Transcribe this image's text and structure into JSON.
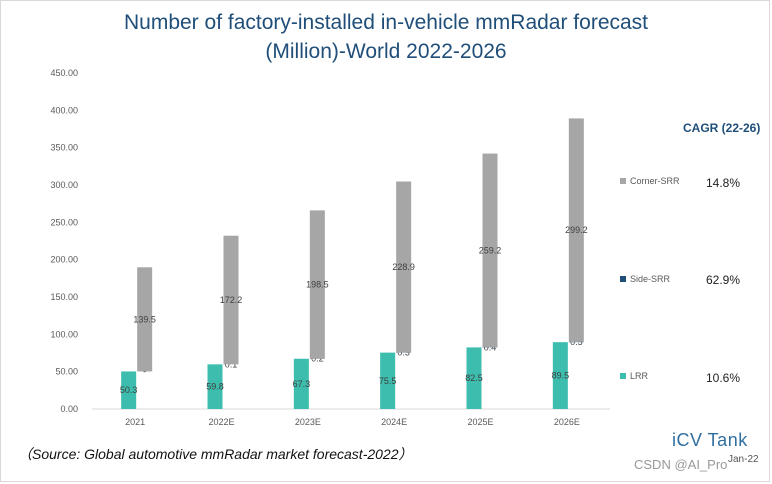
{
  "title_line1": "Number of  factory-installed in-vehicle mmRadar forecast",
  "title_line2": "(Million)-World  2022-2026",
  "chart_data": {
    "type": "bar",
    "stacked": true,
    "title": "Number of  factory-installed in-vehicle mmRadar forecast (Million)-World  2022-2026",
    "categories": [
      "2021",
      "2022E",
      "2023E",
      "2024E",
      "2025E",
      "2026E"
    ],
    "ylim": [
      0,
      450
    ],
    "yticks": [
      "0.00",
      "50.00",
      "100.00",
      "150.00",
      "200.00",
      "250.00",
      "300.00",
      "350.00",
      "400.00",
      "450.00"
    ],
    "grid": false,
    "series": [
      {
        "name": "LRR",
        "color": "#3dbdad",
        "values": [
          50.3,
          59.8,
          67.3,
          75.5,
          82.5,
          89.5
        ],
        "labels": [
          "50.3",
          "59.8",
          "67.3",
          "75.5",
          "82.5",
          "89.5"
        ]
      },
      {
        "name": "Side-SRR",
        "color": "#1f4e79",
        "values": [
          0,
          0.1,
          0.2,
          0.3,
          0.4,
          0.5
        ],
        "labels": [
          "-",
          "0.1",
          "0.2",
          "0.3",
          "0.4",
          "0.5"
        ]
      },
      {
        "name": "Corner-SRR",
        "color": "#a6a6a6",
        "values": [
          139.5,
          172.2,
          198.5,
          228.9,
          259.2,
          299.2
        ],
        "labels": [
          "139.5",
          "172.2",
          "198.5",
          "228.9",
          "259.2",
          "299.2"
        ]
      }
    ],
    "legend_position": "right"
  },
  "cagr": {
    "title": "CAGR (22-26)",
    "items": [
      {
        "series": "Corner-SRR",
        "value": "14.8%"
      },
      {
        "series": "Side-SRR",
        "value": "62.9%"
      },
      {
        "series": "LRR",
        "value": "10.6%"
      }
    ]
  },
  "source": "（Source:  Global automotive mmRadar market forecast-2022）",
  "brand": "iCV Tank",
  "brand_date": "Jan-22",
  "watermark": "CSDN @AI_Pro"
}
